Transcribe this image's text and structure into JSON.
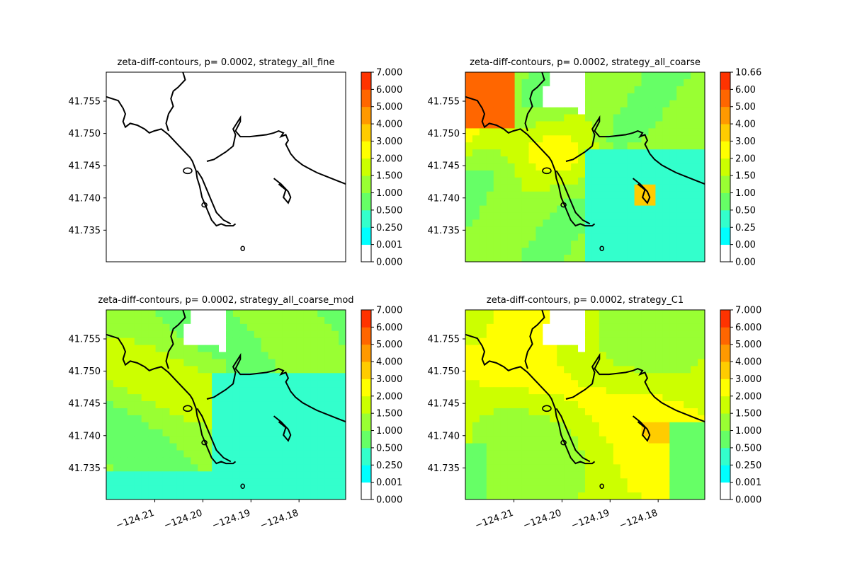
{
  "chart_data": [
    {
      "type": "heatmap",
      "title": "zeta-diff-contours, p= 0.0002, strategy_all_fine",
      "show_y_ticks": true,
      "show_x_ticks": false,
      "field": "none",
      "colorbar": {
        "tick_labels": [
          "0.000",
          "0.001",
          "0.250",
          "0.500",
          "1.000",
          "1.500",
          "2.000",
          "3.000",
          "4.000",
          "5.000",
          "6.000",
          "7.000"
        ],
        "colors": [
          "#ffffff",
          "#00ffff",
          "#33ffcc",
          "#66ff66",
          "#99ff33",
          "#ccff00",
          "#ffff00",
          "#ffcc00",
          "#ff9900",
          "#ff6600",
          "#ff3300",
          "#ff0000"
        ]
      }
    },
    {
      "type": "heatmap",
      "title": "zeta-diff-contours, p= 0.0002, strategy_all_coarse",
      "show_y_ticks": true,
      "show_x_ticks": false,
      "field": "coarse",
      "colorbar": {
        "tick_labels": [
          "0.00",
          "0.00",
          "0.25",
          "0.50",
          "1.00",
          "1.50",
          "2.00",
          "3.00",
          "4.00",
          "5.00",
          "6.00",
          "10.66"
        ],
        "colors": [
          "#ffffff",
          "#00ffff",
          "#33ffcc",
          "#66ff66",
          "#99ff33",
          "#ccff00",
          "#ffff00",
          "#ffcc00",
          "#ff9900",
          "#ff6600",
          "#ff3300",
          "#ff0000"
        ]
      }
    },
    {
      "type": "heatmap",
      "title": "zeta-diff-contours, p= 0.0002, strategy_all_coarse_mod",
      "show_y_ticks": true,
      "show_x_ticks": true,
      "field": "coarse_mod",
      "colorbar": {
        "tick_labels": [
          "0.000",
          "0.001",
          "0.250",
          "0.500",
          "1.000",
          "1.500",
          "2.000",
          "3.000",
          "4.000",
          "5.000",
          "6.000",
          "7.000"
        ],
        "colors": [
          "#ffffff",
          "#00ffff",
          "#33ffcc",
          "#66ff66",
          "#99ff33",
          "#ccff00",
          "#ffff00",
          "#ffcc00",
          "#ff9900",
          "#ff6600",
          "#ff3300",
          "#ff0000"
        ]
      }
    },
    {
      "type": "heatmap",
      "title": "zeta-diff-contours, p= 0.0002, strategy_C1",
      "show_y_ticks": true,
      "show_x_ticks": true,
      "field": "c1",
      "colorbar": {
        "tick_labels": [
          "0.000",
          "0.001",
          "0.250",
          "0.500",
          "1.000",
          "1.500",
          "2.000",
          "3.000",
          "4.000",
          "5.000",
          "6.000",
          "7.000"
        ],
        "colors": [
          "#ffffff",
          "#00ffff",
          "#33ffcc",
          "#66ff66",
          "#99ff33",
          "#ccff00",
          "#ffff00",
          "#ffcc00",
          "#ff9900",
          "#ff6600",
          "#ff3300",
          "#ff0000"
        ]
      }
    }
  ],
  "axes": {
    "xlim": [
      -124.2201,
      -124.1703
    ],
    "ylim": [
      41.7301,
      41.7595
    ],
    "x_ticks": [
      -124.21,
      -124.2,
      -124.19,
      -124.18
    ],
    "x_tick_labels": [
      "−124.21",
      "−124.20",
      "−124.19",
      "−124.18"
    ],
    "y_ticks": [
      41.735,
      41.74,
      41.745,
      41.75,
      41.755
    ],
    "y_tick_labels": [
      "41.735",
      "41.740",
      "41.745",
      "41.750",
      "41.755"
    ]
  },
  "coastline_color": "#000000"
}
